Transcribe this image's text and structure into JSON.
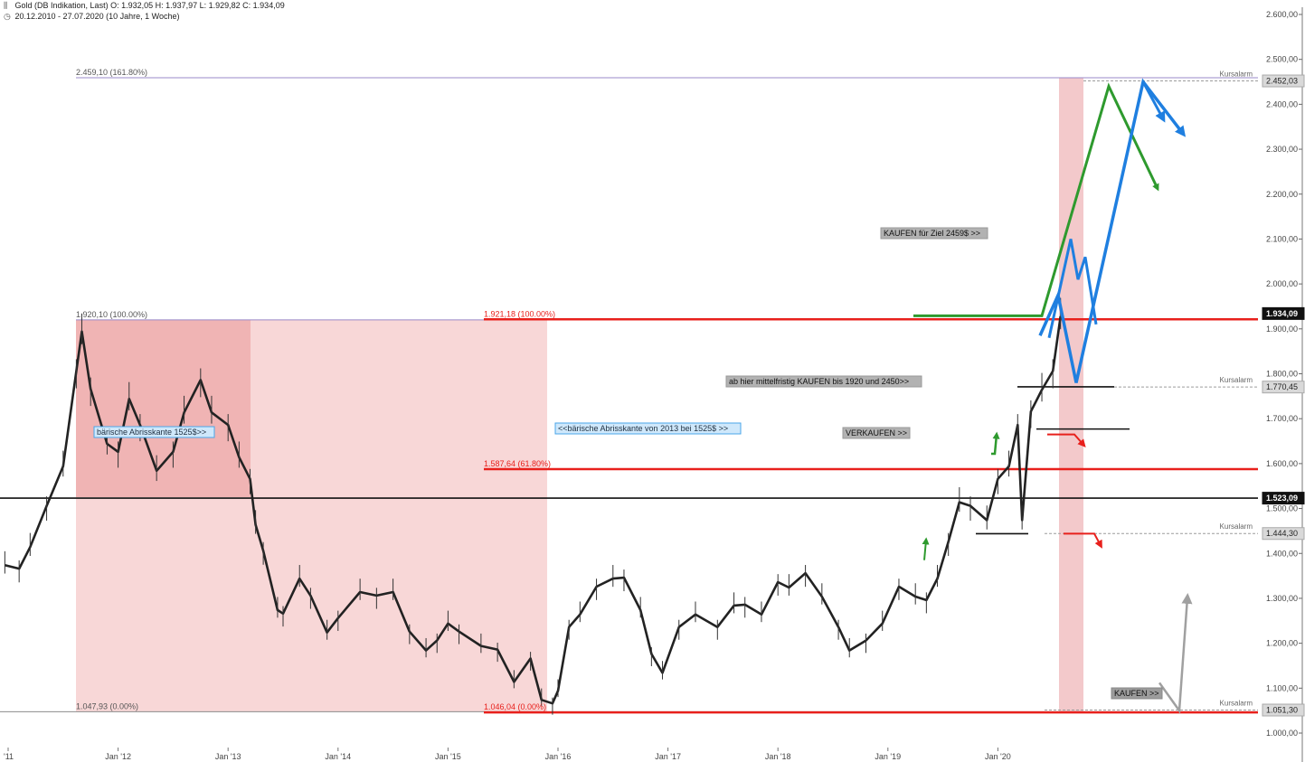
{
  "header": {
    "line1": "Gold (DB Indikation, Last)  O: 1.932,05  H: 1.937,97  L: 1.929,82  C: 1.934,09",
    "line2": "20.12.2010 - 27.07.2020  (10 Jahre, 1 Woche)",
    "line1_icon": "bar-chart-icon",
    "line2_icon": "clock-icon"
  },
  "colors": {
    "red_line": "#e8201c",
    "fill_pink": "#f8d7d7",
    "fill_red": "#f0b4b4",
    "purple_line": "#9a88c8",
    "green": "#2e9a2e",
    "blue": "#1f7fe0",
    "grey_arrow": "#a0a0a0",
    "label_grey": "#a9a9a9"
  },
  "chart_data": {
    "type": "line",
    "title": "Gold (DB Indikation, Last)",
    "xlabel": "",
    "ylabel": "",
    "ylim": [
      1000,
      2600
    ],
    "y_ticks": [
      "2.600,00",
      "2.500,00",
      "2.400,00",
      "2.300,00",
      "2.200,00",
      "2.100,00",
      "2.000,00",
      "1.900,00",
      "1.800,00",
      "1.700,00",
      "1.600,00",
      "1.500,00",
      "1.400,00",
      "1.300,00",
      "1.200,00",
      "1.100,00",
      "1.000,00"
    ],
    "x_ticks": [
      "'11",
      "Jan '12",
      "Jan '13",
      "Jan '14",
      "Jan '15",
      "Jan '16",
      "Jan '17",
      "Jan '18",
      "Jan '19",
      "Jan '20"
    ],
    "grid": false,
    "series": [
      {
        "name": "",
        "x": [
          2010.97,
          2011.1,
          2011.2,
          2011.35,
          2011.5,
          2011.62,
          2011.67,
          2011.75,
          2011.9,
          2012.0,
          2012.1,
          2012.2,
          2012.35,
          2012.5,
          2012.6,
          2012.75,
          2012.85,
          2013.0,
          2013.1,
          2013.2,
          2013.25,
          2013.32,
          2013.45,
          2013.5,
          2013.65,
          2013.75,
          2013.9,
          2014.0,
          2014.2,
          2014.35,
          2014.5,
          2014.65,
          2014.8,
          2014.9,
          2015.0,
          2015.1,
          2015.3,
          2015.45,
          2015.6,
          2015.75,
          2015.85,
          2015.95,
          2016.0,
          2016.1,
          2016.2,
          2016.35,
          2016.5,
          2016.6,
          2016.75,
          2016.85,
          2016.95,
          2017.1,
          2017.25,
          2017.45,
          2017.6,
          2017.7,
          2017.85,
          2018.0,
          2018.1,
          2018.25,
          2018.4,
          2018.55,
          2018.65,
          2018.8,
          2018.95,
          2019.1,
          2019.25,
          2019.35,
          2019.45,
          2019.55,
          2019.65,
          2019.75,
          2019.9,
          2020.0,
          2020.1,
          2020.18,
          2020.22,
          2020.3,
          2020.4,
          2020.5,
          2020.57
        ],
        "values": [
          1380,
          1360,
          1420,
          1500,
          1600,
          1800,
          1900,
          1760,
          1650,
          1620,
          1750,
          1680,
          1590,
          1620,
          1720,
          1780,
          1720,
          1680,
          1620,
          1560,
          1470,
          1400,
          1280,
          1260,
          1350,
          1300,
          1230,
          1250,
          1320,
          1300,
          1320,
          1220,
          1190,
          1200,
          1250,
          1220,
          1200,
          1180,
          1120,
          1160,
          1080,
          1060,
          1100,
          1230,
          1270,
          1320,
          1350,
          1340,
          1280,
          1170,
          1140,
          1230,
          1270,
          1230,
          1290,
          1280,
          1270,
          1330,
          1330,
          1350,
          1310,
          1230,
          1190,
          1200,
          1250,
          1320,
          1310,
          1290,
          1350,
          1420,
          1520,
          1500,
          1480,
          1560,
          1600,
          1680,
          1480,
          1710,
          1770,
          1800,
          1934
        ]
      }
    ],
    "levels": [
      {
        "value": 2459.1,
        "label": "2.459,10 (161.80%)"
      },
      {
        "value": 1920.1,
        "label": "1.920,10 (100.00%)"
      },
      {
        "value": 1921.18,
        "label": "1.921,18 (100.00%)"
      },
      {
        "value": 1587.64,
        "label": "1.587,64 (61.80%)"
      },
      {
        "value": 1047.93,
        "label": "1.047,93 (0.00%)"
      },
      {
        "value": 1046.04,
        "label": "1.046,04 (0.00%)"
      },
      {
        "value": 1523.09,
        "label": "1.523,09"
      }
    ],
    "annotations": {
      "kaufen_ziel": "KAUFEN für Ziel 2459$ >>",
      "mittelfristig": "ab hier mittelfristig KAUFEN bis 1920 und 2450>>",
      "verkaufen": "VERKAUFEN >>",
      "abriss1": "bärische Abrisskante 1525$>>",
      "abriss2": "<<bärische Abrisskante von 2013 bei 1525$ >>",
      "kaufen_bottom": "KAUFEN >>",
      "kursalarm": "Kursalarm"
    },
    "price_badges": [
      {
        "value": 2452.03,
        "label": "2.452,03",
        "style": "light",
        "alarm": true
      },
      {
        "value": 1934.09,
        "label": "1.934,09",
        "style": "dark",
        "alarm": false
      },
      {
        "value": 1770.45,
        "label": "1.770,45",
        "style": "light",
        "alarm": true
      },
      {
        "value": 1523.09,
        "label": "1.523,09",
        "style": "dark",
        "alarm": false
      },
      {
        "value": 1444.3,
        "label": "1.444,30",
        "style": "light",
        "alarm": true
      },
      {
        "value": 1051.3,
        "label": "1.051,30",
        "style": "light",
        "alarm": true
      }
    ]
  }
}
